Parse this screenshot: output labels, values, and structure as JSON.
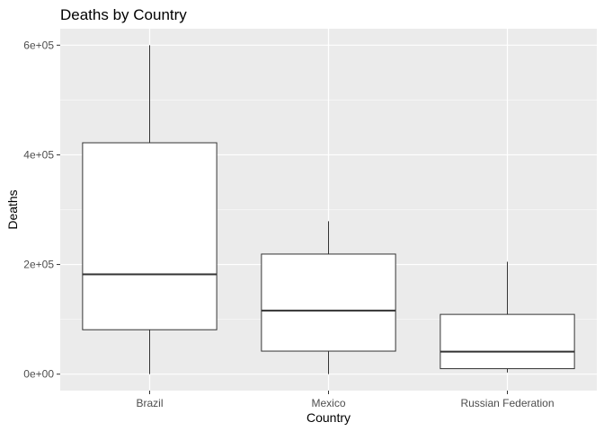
{
  "chart_data": {
    "type": "box",
    "title": "Deaths by Country",
    "xlabel": "Country",
    "ylabel": "Deaths",
    "categories": [
      "Brazil",
      "Mexico",
      "Russian Federation"
    ],
    "boxes": [
      {
        "category": "Brazil",
        "min": 0,
        "q1": 81000,
        "median": 182000,
        "q3": 422000,
        "max": 600000
      },
      {
        "category": "Mexico",
        "min": 0,
        "q1": 42000,
        "median": 116000,
        "q3": 219000,
        "max": 279000
      },
      {
        "category": "Russian Federation",
        "min": 3000,
        "q1": 10000,
        "median": 41000,
        "q3": 109000,
        "max": 205000
      }
    ],
    "y_ticks": [
      {
        "value": 0,
        "label": "0e+00"
      },
      {
        "value": 200000,
        "label": "2e+05"
      },
      {
        "value": 400000,
        "label": "4e+05"
      },
      {
        "value": 600000,
        "label": "6e+05"
      }
    ],
    "ylim": [
      -30000,
      630000
    ],
    "grid": true,
    "panel_background": "#ebebeb",
    "grid_color": "#ffffff",
    "box_fill": "#ffffff",
    "box_stroke": "#333333"
  }
}
